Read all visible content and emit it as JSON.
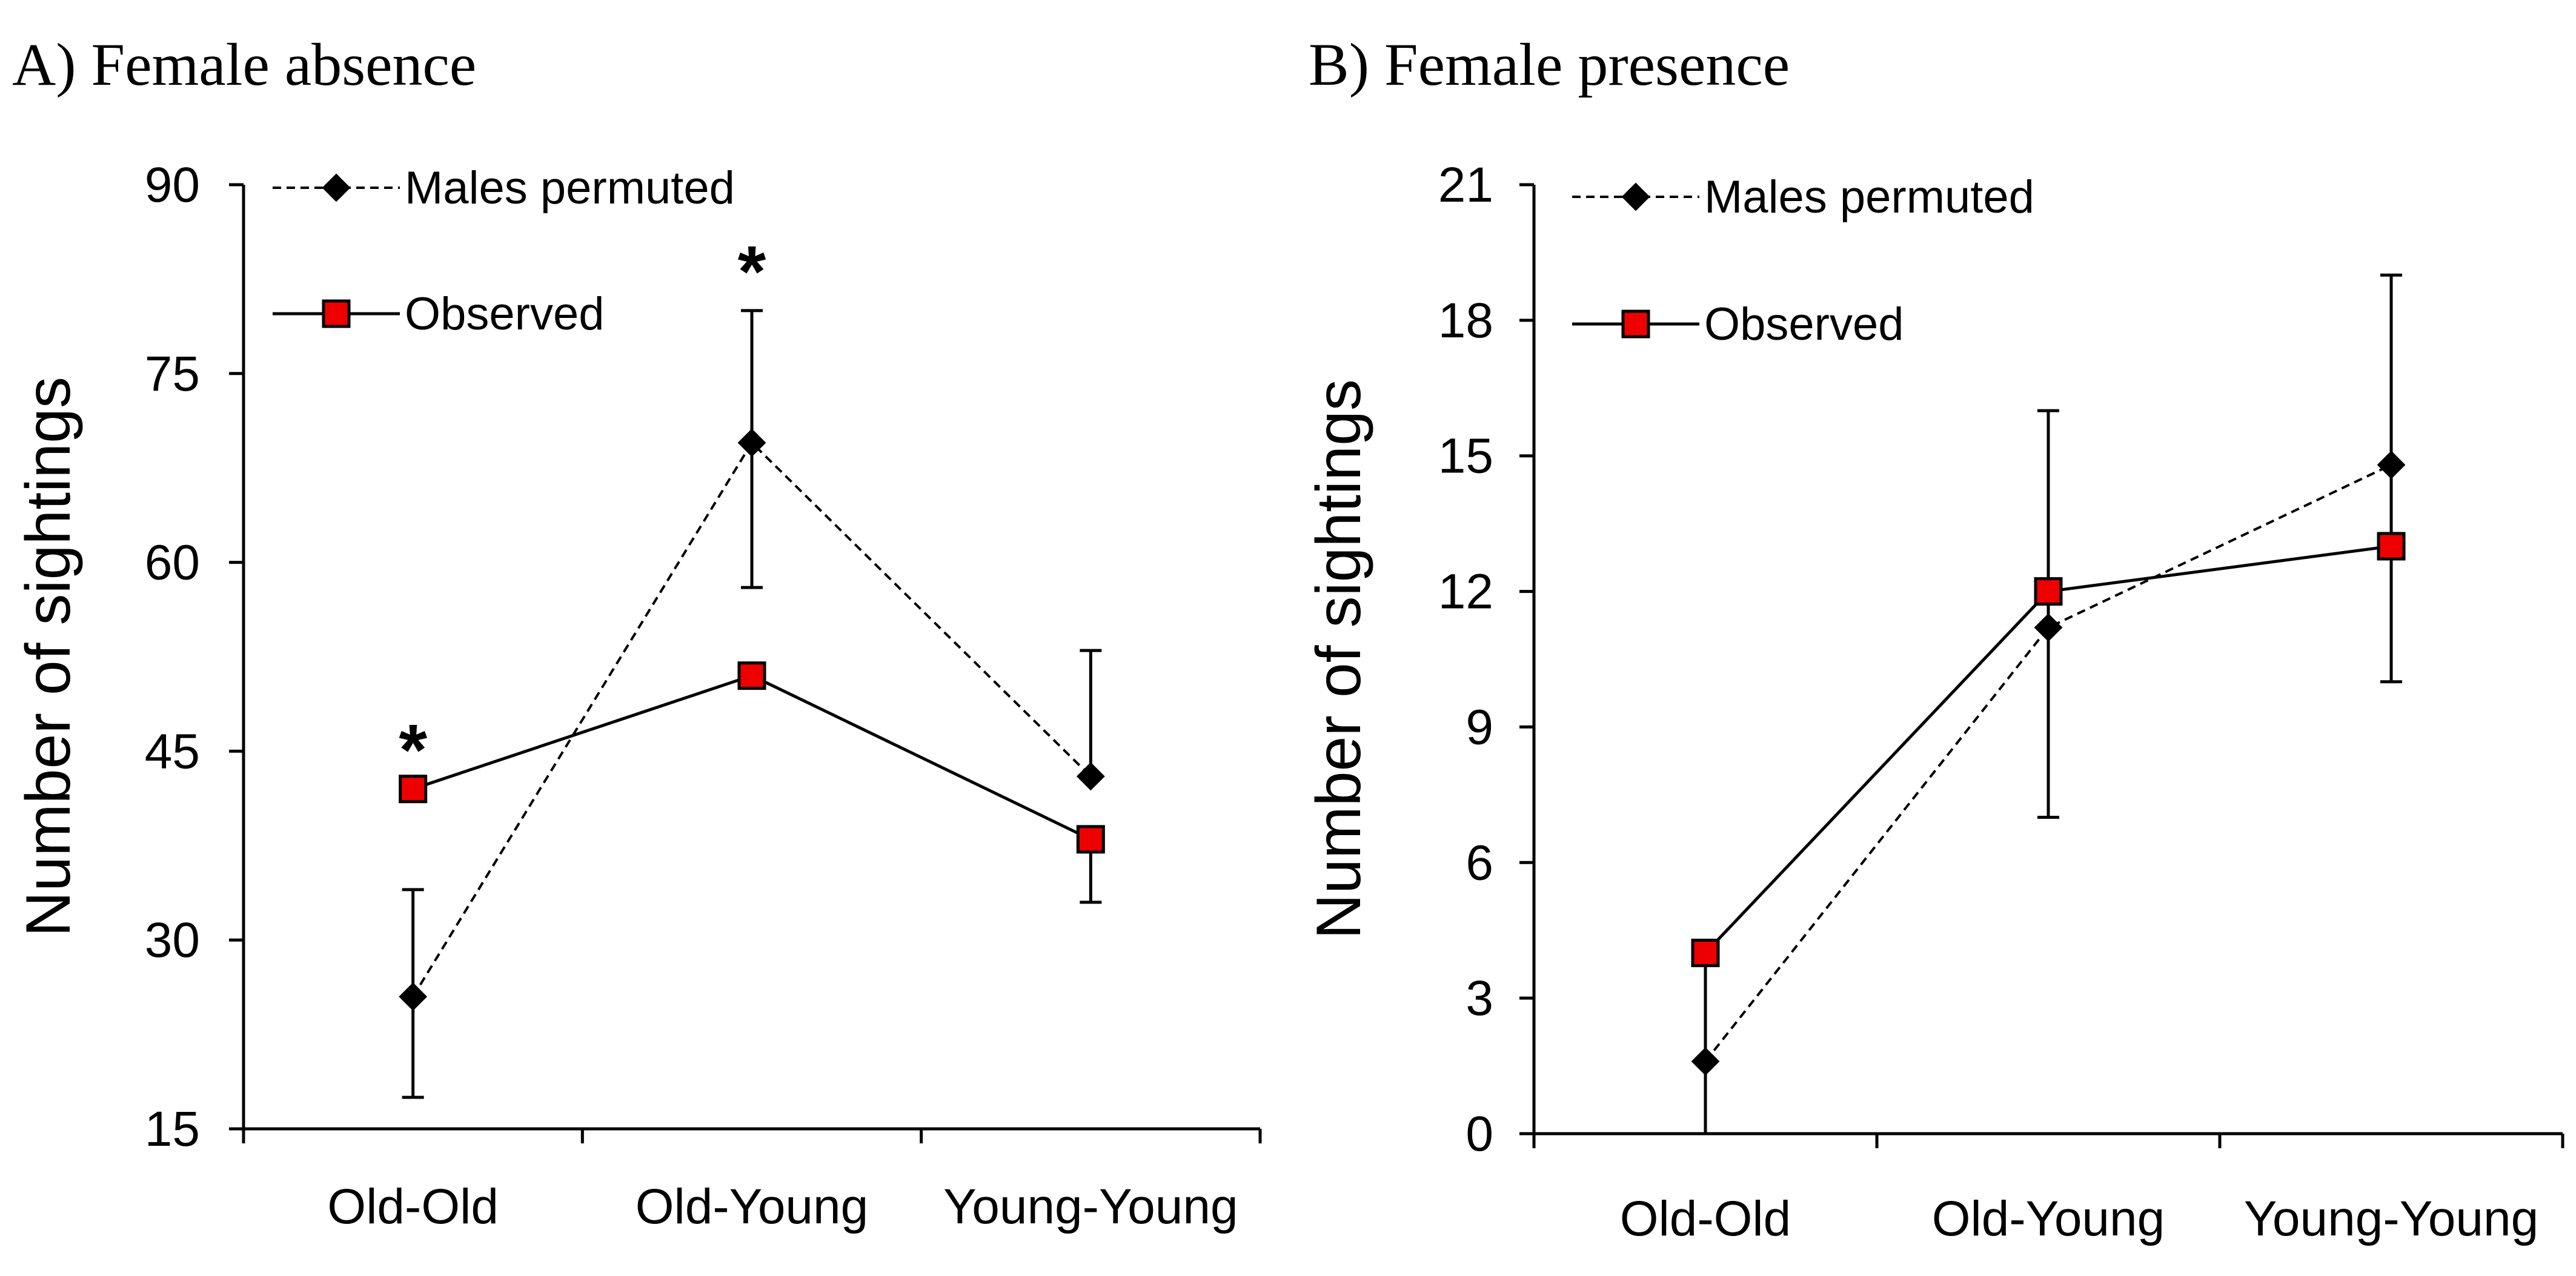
{
  "colors": {
    "observed_fill": "#ee0000",
    "permuted_fill": "#000000",
    "line": "#000000"
  },
  "chart_data": [
    {
      "type": "line",
      "title": "A) Female absence",
      "xlabel": "",
      "ylabel": "Number of sightings",
      "categories": [
        "Old-Old",
        "Old-Young",
        "Young-Young"
      ],
      "ylim": [
        15,
        90
      ],
      "yticks": [
        15,
        30,
        45,
        60,
        75,
        90
      ],
      "grid": false,
      "legend_position": "top-left",
      "series": [
        {
          "name": "Males permuted",
          "style": "dashed",
          "marker": "diamond",
          "values": [
            25.5,
            69.5,
            43
          ],
          "error_low": [
            17.5,
            58,
            null
          ],
          "error_high": [
            34,
            80,
            53
          ]
        },
        {
          "name": "Observed",
          "style": "solid",
          "marker": "square",
          "values": [
            42,
            51,
            38
          ],
          "error_low": [
            null,
            null,
            33
          ],
          "error_high": [
            null,
            null,
            null
          ]
        }
      ],
      "annotations": [
        {
          "text": "*",
          "category": "Old-Old",
          "y": 46
        },
        {
          "text": "*",
          "category": "Old-Young",
          "y": 84
        }
      ]
    },
    {
      "type": "line",
      "title": "B) Female presence",
      "xlabel": "",
      "ylabel": "Number of sightings",
      "categories": [
        "Old-Old",
        "Old-Young",
        "Young-Young"
      ],
      "ylim": [
        0,
        21
      ],
      "yticks": [
        0,
        3,
        6,
        9,
        12,
        15,
        18,
        21
      ],
      "grid": false,
      "legend_position": "top-left",
      "series": [
        {
          "name": "Males permuted",
          "style": "dashed",
          "marker": "diamond",
          "values": [
            1.6,
            11.2,
            14.8
          ],
          "error_low": [
            0,
            7,
            10
          ],
          "error_high": [
            4,
            16,
            19
          ]
        },
        {
          "name": "Observed",
          "style": "solid",
          "marker": "square",
          "values": [
            4,
            12,
            13
          ],
          "error_low": [
            null,
            null,
            null
          ],
          "error_high": [
            null,
            null,
            null
          ]
        }
      ],
      "annotations": []
    }
  ]
}
